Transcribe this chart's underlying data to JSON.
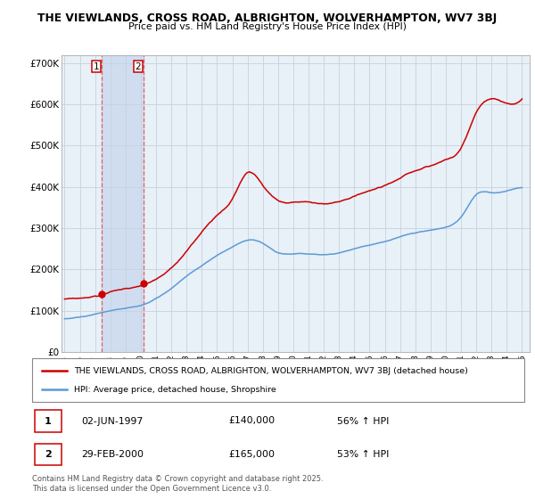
{
  "title_line1": "THE VIEWLANDS, CROSS ROAD, ALBRIGHTON, WOLVERHAMPTON, WV7 3BJ",
  "title_line2": "Price paid vs. HM Land Registry's House Price Index (HPI)",
  "xlim": [
    1994.8,
    2025.5
  ],
  "ylim": [
    0,
    720000
  ],
  "yticks": [
    0,
    100000,
    200000,
    300000,
    400000,
    500000,
    600000,
    700000
  ],
  "ytick_labels": [
    "£0",
    "£100K",
    "£200K",
    "£300K",
    "£400K",
    "£500K",
    "£600K",
    "£700K"
  ],
  "xticks": [
    1995,
    1996,
    1997,
    1998,
    1999,
    2000,
    2001,
    2002,
    2003,
    2004,
    2005,
    2006,
    2007,
    2008,
    2009,
    2010,
    2011,
    2012,
    2013,
    2014,
    2015,
    2016,
    2017,
    2018,
    2019,
    2020,
    2021,
    2022,
    2023,
    2024,
    2025
  ],
  "sale1_x": 1997.42,
  "sale1_y": 140000,
  "sale1_label": "1",
  "sale2_x": 2000.16,
  "sale2_y": 165000,
  "sale2_label": "2",
  "vline1_x": 1997.42,
  "vline2_x": 2000.16,
  "legend_entries": [
    "THE VIEWLANDS, CROSS ROAD, ALBRIGHTON, WOLVERHAMPTON, WV7 3BJ (detached house)",
    "HPI: Average price, detached house, Shropshire"
  ],
  "table_rows": [
    {
      "num": "1",
      "date": "02-JUN-1997",
      "price": "£140,000",
      "hpi": "56% ↑ HPI"
    },
    {
      "num": "2",
      "date": "29-FEB-2000",
      "price": "£165,000",
      "hpi": "53% ↑ HPI"
    }
  ],
  "footnote": "Contains HM Land Registry data © Crown copyright and database right 2025.\nThis data is licensed under the Open Government Licence v3.0.",
  "red_color": "#cc0000",
  "blue_color": "#5b9bd5",
  "bg_color": "#e8f0f8",
  "grid_color": "#c8d0dc",
  "vline_color": "#e06060",
  "span_color": "#d0ddf0"
}
